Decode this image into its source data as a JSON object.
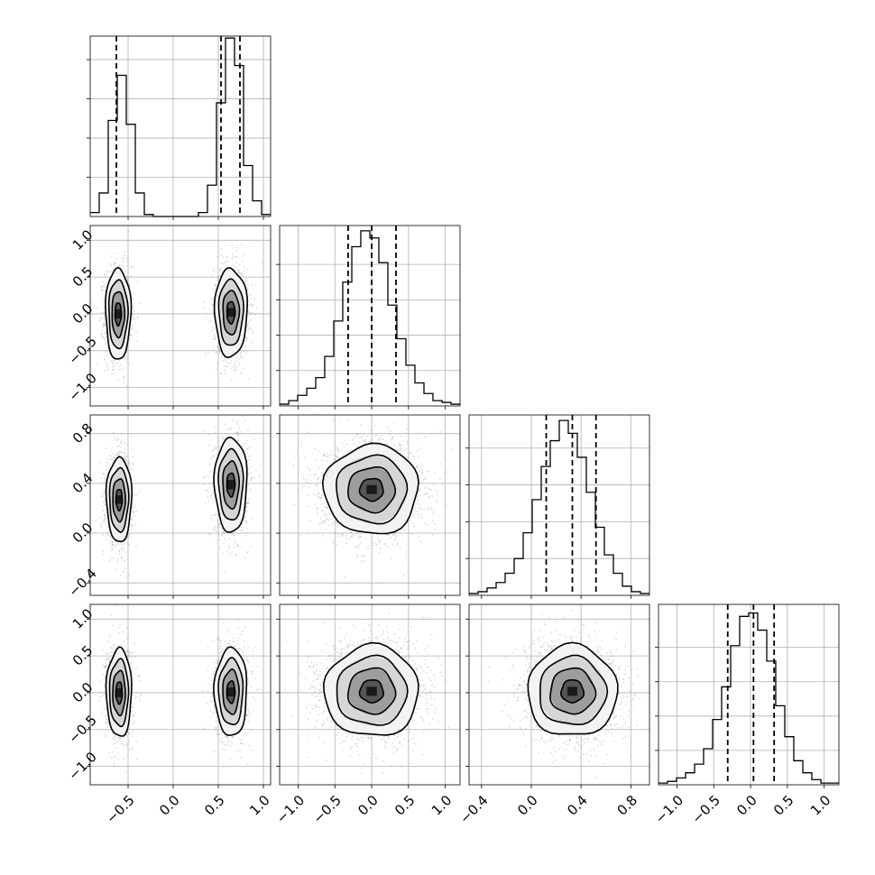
{
  "chart_data": {
    "type": "corner",
    "dimensions": 4,
    "grid": true,
    "quantiles": [
      0.16,
      0.5,
      0.84
    ],
    "colors": {
      "hist": "#000000",
      "contour": "#000000",
      "scatter": "#9e9e9e",
      "grid": "#b0b0b0"
    },
    "axes": [
      {
        "range": [
          -0.92,
          1.08
        ],
        "ticks": [
          -0.5,
          0.0,
          0.5,
          1.0
        ],
        "tick_labels": [
          "−0.5",
          "0.0",
          "0.5",
          "1.0"
        ]
      },
      {
        "range": [
          -1.25,
          1.2
        ],
        "ticks": [
          -1.0,
          -0.5,
          0.0,
          0.5,
          1.0
        ],
        "tick_labels": [
          "−1.0",
          "−0.5",
          "0.0",
          "0.5",
          "1.0"
        ]
      },
      {
        "range": [
          -0.5,
          0.95
        ],
        "ticks": [
          -0.4,
          0.0,
          0.4,
          0.8
        ],
        "tick_labels": [
          "−0.4",
          "0.0",
          "0.4",
          "0.8"
        ]
      },
      {
        "range": [
          -1.25,
          1.2
        ],
        "ticks": [
          -1.0,
          -0.5,
          0.0,
          0.5,
          1.0
        ],
        "tick_labels": [
          "−1.0",
          "−0.5",
          "0.0",
          "0.5",
          "1.0"
        ]
      }
    ],
    "marginals": [
      {
        "dimension": 0,
        "bin_edges": [
          -0.92,
          -0.82,
          -0.72,
          -0.62,
          -0.52,
          -0.42,
          -0.32,
          -0.22,
          -0.12,
          -0.02,
          0.08,
          0.18,
          0.28,
          0.38,
          0.48,
          0.58,
          0.68,
          0.78,
          0.88,
          0.98,
          1.08
        ],
        "counts": [
          0.02,
          0.12,
          0.49,
          0.72,
          0.47,
          0.12,
          0.01,
          0.0,
          0.0,
          0.0,
          0.0,
          0.0,
          0.02,
          0.16,
          0.58,
          0.91,
          0.77,
          0.26,
          0.08,
          0.01
        ],
        "quantile_lines": [
          -0.63,
          0.53,
          0.74
        ],
        "ylim": [
          0,
          0.92
        ]
      },
      {
        "dimension": 1,
        "bin_edges": [
          -1.25,
          -1.127,
          -1.005,
          -0.882,
          -0.76,
          -0.638,
          -0.515,
          -0.393,
          -0.27,
          -0.148,
          -0.025,
          0.097,
          0.22,
          0.342,
          0.465,
          0.587,
          0.71,
          0.832,
          0.955,
          1.077,
          1.2
        ],
        "counts": [
          0.01,
          0.03,
          0.06,
          0.1,
          0.16,
          0.28,
          0.48,
          0.7,
          0.9,
          0.99,
          0.95,
          0.81,
          0.57,
          0.38,
          0.23,
          0.13,
          0.07,
          0.03,
          0.02,
          0.01
        ],
        "quantile_lines": [
          -0.32,
          0.0,
          0.33
        ],
        "ylim": [
          0,
          1.02
        ]
      },
      {
        "dimension": 2,
        "bin_edges": [
          -0.5,
          -0.4275,
          -0.355,
          -0.2825,
          -0.21,
          -0.1375,
          -0.065,
          0.0075,
          0.08,
          0.1525,
          0.225,
          0.2975,
          0.37,
          0.4425,
          0.515,
          0.5875,
          0.66,
          0.7325,
          0.805,
          0.8775,
          0.95
        ],
        "counts": [
          0.01,
          0.02,
          0.04,
          0.07,
          0.12,
          0.2,
          0.34,
          0.52,
          0.7,
          0.84,
          0.95,
          0.88,
          0.75,
          0.56,
          0.37,
          0.22,
          0.12,
          0.05,
          0.02,
          0.01
        ],
        "quantile_lines": [
          0.12,
          0.33,
          0.52
        ],
        "ylim": [
          0,
          0.98
        ]
      },
      {
        "dimension": 3,
        "bin_edges": [
          -1.25,
          -1.127,
          -1.005,
          -0.882,
          -0.76,
          -0.638,
          -0.515,
          -0.393,
          -0.27,
          -0.148,
          -0.025,
          0.097,
          0.22,
          0.342,
          0.465,
          0.587,
          0.71,
          0.832,
          0.955,
          1.077,
          1.2
        ],
        "counts": [
          0.01,
          0.02,
          0.04,
          0.07,
          0.12,
          0.21,
          0.38,
          0.57,
          0.81,
          0.98,
          1.0,
          0.9,
          0.72,
          0.46,
          0.28,
          0.14,
          0.07,
          0.03,
          0.01,
          0.01
        ],
        "quantile_lines": [
          -0.31,
          0.04,
          0.32
        ],
        "ylim": [
          0,
          1.05
        ]
      }
    ],
    "pairs": [
      {
        "x": 0,
        "y": 1,
        "modes": [
          {
            "mean": [
              -0.61,
              0.0
            ],
            "sd": [
              0.07,
              0.31
            ]
          },
          {
            "mean": [
              0.64,
              0.02
            ],
            "sd": [
              0.09,
              0.3
            ]
          }
        ]
      },
      {
        "x": 0,
        "y": 2,
        "modes": [
          {
            "mean": [
              -0.6,
              0.27
            ],
            "sd": [
              0.07,
              0.17
            ]
          },
          {
            "mean": [
              0.64,
              0.39
            ],
            "sd": [
              0.09,
              0.19
            ]
          }
        ]
      },
      {
        "x": 0,
        "y": 3,
        "modes": [
          {
            "mean": [
              -0.6,
              0.0
            ],
            "sd": [
              0.07,
              0.3
            ]
          },
          {
            "mean": [
              0.64,
              0.01
            ],
            "sd": [
              0.09,
              0.3
            ]
          }
        ]
      },
      {
        "x": 1,
        "y": 2,
        "modes": [
          {
            "mean": [
              0.0,
              0.35
            ],
            "sd": [
              0.32,
              0.18
            ]
          }
        ]
      },
      {
        "x": 1,
        "y": 3,
        "modes": [
          {
            "mean": [
              0.0,
              0.02
            ],
            "sd": [
              0.32,
              0.31
            ]
          }
        ]
      },
      {
        "x": 2,
        "y": 3,
        "modes": [
          {
            "mean": [
              0.33,
              0.02
            ],
            "sd": [
              0.18,
              0.31
            ]
          }
        ]
      }
    ]
  }
}
